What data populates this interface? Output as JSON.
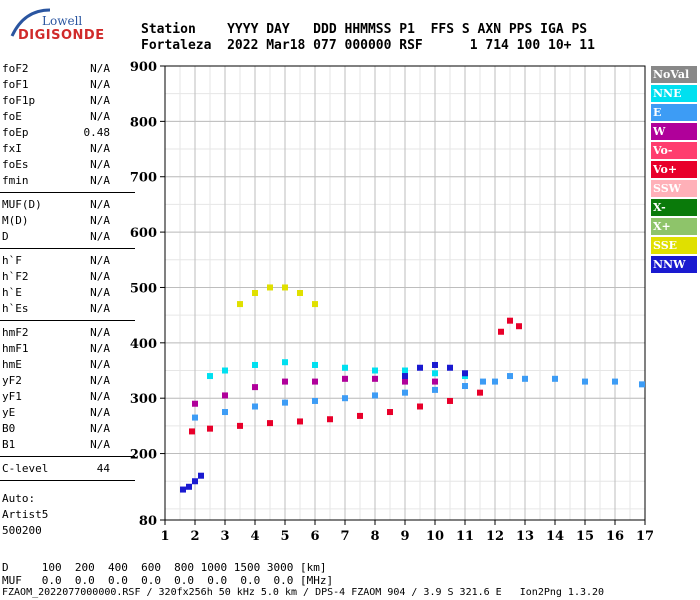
{
  "logo": {
    "top": "Lowell",
    "bottom": "DIGISONDE"
  },
  "header": {
    "line1": "Station    YYYY DAY   DDD HHMMSS P1  FFS S AXN PPS IGA PS",
    "line2": "Fortaleza  2022 Mar18 077 000000 RSF      1 714 100 10+ 11"
  },
  "params": [
    [
      {
        "name": "foF2",
        "value": "N/A"
      },
      {
        "name": "foF1",
        "value": "N/A"
      },
      {
        "name": "foF1p",
        "value": "N/A"
      },
      {
        "name": "foE",
        "value": "N/A"
      },
      {
        "name": "foEp",
        "value": "0.48"
      },
      {
        "name": "fxI",
        "value": "N/A"
      },
      {
        "name": "foEs",
        "value": "N/A"
      },
      {
        "name": "fmin",
        "value": "N/A"
      }
    ],
    [
      {
        "name": "MUF(D)",
        "value": "N/A"
      },
      {
        "name": "M(D)",
        "value": "N/A"
      },
      {
        "name": "D",
        "value": "N/A"
      }
    ],
    [
      {
        "name": "h`F",
        "value": "N/A"
      },
      {
        "name": "h`F2",
        "value": "N/A"
      },
      {
        "name": "h`E",
        "value": "N/A"
      },
      {
        "name": "h`Es",
        "value": "N/A"
      }
    ],
    [
      {
        "name": "hmF2",
        "value": "N/A"
      },
      {
        "name": "hmF1",
        "value": "N/A"
      },
      {
        "name": "hmE",
        "value": "N/A"
      },
      {
        "name": "yF2",
        "value": "N/A"
      },
      {
        "name": "yF1",
        "value": "N/A"
      },
      {
        "name": "yE",
        "value": "N/A"
      },
      {
        "name": "B0",
        "value": "N/A"
      },
      {
        "name": "B1",
        "value": "N/A"
      }
    ],
    [
      {
        "name": "C-level",
        "value": "44"
      }
    ]
  ],
  "auto": [
    "Auto:",
    "Artist5",
    "500200"
  ],
  "legend": [
    {
      "label": "NoVal",
      "bg": "#888888",
      "fg": "#ffffff"
    },
    {
      "label": "NNE",
      "bg": "#00e0f0",
      "fg": "#ffffff"
    },
    {
      "label": "E",
      "bg": "#3d9cf5",
      "fg": "#ffffff"
    },
    {
      "label": "W",
      "bg": "#b0009a",
      "fg": "#ffffff"
    },
    {
      "label": "Vo-",
      "bg": "#ff3d6e",
      "fg": "#ffffff"
    },
    {
      "label": "Vo+",
      "bg": "#e8002a",
      "fg": "#ffffff"
    },
    {
      "label": "SSW",
      "bg": "#ffb0b8",
      "fg": "#ffffff"
    },
    {
      "label": "X-",
      "bg": "#0a7a0a",
      "fg": "#ffffff"
    },
    {
      "label": "X+",
      "bg": "#8ec46a",
      "fg": "#ffffff"
    },
    {
      "label": "SSE",
      "bg": "#e0e000",
      "fg": "#ffffff"
    },
    {
      "label": "NNW",
      "bg": "#1a1ad0",
      "fg": "#ffffff"
    }
  ],
  "footer": {
    "d_line": "D     100  200  400  600  800 1000 1500 3000 [km]",
    "muf_line": "MUF   0.0  0.0  0.0  0.0  0.0  0.0  0.0  0.0 [MHz]",
    "file_line": "FZAOM_2022077000000.RSF / 320fx256h 50 kHz 5.0 km / DPS-4 FZAOM 904 / 3.9 S 321.6 E   Ion2Png 1.3.20"
  },
  "chart_data": {
    "type": "scatter",
    "xlim": [
      1,
      17
    ],
    "ylim": [
      80,
      900
    ],
    "x_ticks": [
      1,
      2,
      3,
      4,
      5,
      6,
      7,
      8,
      9,
      10,
      11,
      12,
      13,
      14,
      15,
      16,
      17
    ],
    "y_ticks": [
      80,
      200,
      300,
      400,
      500,
      600,
      700,
      800,
      900
    ],
    "grid": true,
    "legend_position": "right",
    "traces": [
      {
        "x": [
          1.9,
          2.5,
          3.5,
          4.5,
          5.5,
          6.5,
          7.5,
          8.5,
          9.5,
          10.5,
          11.5
        ],
        "y": [
          240,
          245,
          250,
          255,
          258,
          262,
          268,
          275,
          285,
          295,
          310
        ],
        "color": "#e8002a"
      },
      {
        "x": [
          2,
          3,
          4,
          5,
          6,
          7,
          8,
          9,
          10,
          11,
          11.6
        ],
        "y": [
          265,
          275,
          285,
          292,
          295,
          300,
          305,
          310,
          315,
          322,
          330
        ],
        "color": "#3d9cf5"
      },
      {
        "x": [
          2,
          3,
          4,
          5,
          6,
          7,
          8,
          9,
          10
        ],
        "y": [
          290,
          305,
          320,
          330,
          330,
          335,
          335,
          330,
          330
        ],
        "color": "#b0009a"
      },
      {
        "x": [
          2.5,
          3,
          4,
          5,
          6,
          7,
          8,
          9,
          10,
          11
        ],
        "y": [
          340,
          350,
          360,
          365,
          360,
          355,
          350,
          350,
          345,
          340
        ],
        "color": "#00e0f0"
      },
      {
        "x": [
          9,
          9.5,
          10,
          10.5,
          11
        ],
        "y": [
          340,
          355,
          360,
          355,
          345
        ],
        "color": "#1a1ad0"
      },
      {
        "x": [
          3.5,
          4,
          4.5,
          5,
          5.5,
          6
        ],
        "y": [
          470,
          490,
          500,
          500,
          490,
          470
        ],
        "color": "#e0e000"
      },
      {
        "x": [
          1.6,
          1.8,
          2,
          2.2
        ],
        "y": [
          135,
          140,
          150,
          160
        ],
        "color": "#1a1ad0"
      },
      {
        "x": [
          12,
          12.5,
          13,
          14,
          15,
          16,
          16.9
        ],
        "y": [
          330,
          340,
          335,
          335,
          330,
          330,
          325
        ],
        "color": "#3d9cf5"
      },
      {
        "x": [
          12.2,
          12.5,
          12.8
        ],
        "y": [
          420,
          440,
          430
        ],
        "color": "#e8002a"
      }
    ]
  }
}
